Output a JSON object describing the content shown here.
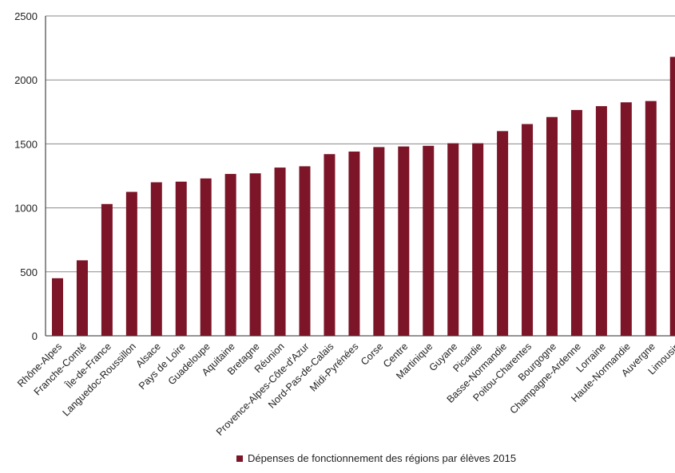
{
  "chart_data": {
    "type": "bar",
    "categories": [
      "Rhône-Alpes",
      "Franche-Comté",
      "Île-de-France",
      "Languedoc-Roussillon",
      "Alsace",
      "Pays de Loire",
      "Guadeloupe",
      "Aquitaine",
      "Bretagne",
      "Réunion",
      "Provence-Alpes-Côte-d'Azur",
      "Nord-Pas-de-Calais",
      "Midi-Pyrénées",
      "Corse",
      "Centre",
      "Martinique",
      "Guyane",
      "Picardie",
      "Basse-Normandie",
      "Poitou-Charentes",
      "Bourgogne",
      "Champagne-Ardenne",
      "Lorraine",
      "Haute-Normandie",
      "Auvergne",
      "Limousin"
    ],
    "series": [
      {
        "name": "Dépenses de fonctionnement des régions par élèves 2015",
        "values": [
          450,
          590,
          1030,
          1125,
          1200,
          1205,
          1230,
          1265,
          1270,
          1315,
          1325,
          1420,
          1440,
          1475,
          1480,
          1485,
          1505,
          1505,
          1600,
          1655,
          1710,
          1765,
          1795,
          1825,
          1835,
          2180
        ],
        "color": "#7b1527"
      }
    ],
    "ylim": [
      0,
      2500
    ],
    "yticks": [
      "0",
      "500",
      "1000",
      "1500",
      "2000",
      "2500"
    ],
    "grid": true,
    "legend_position": "bottom"
  }
}
